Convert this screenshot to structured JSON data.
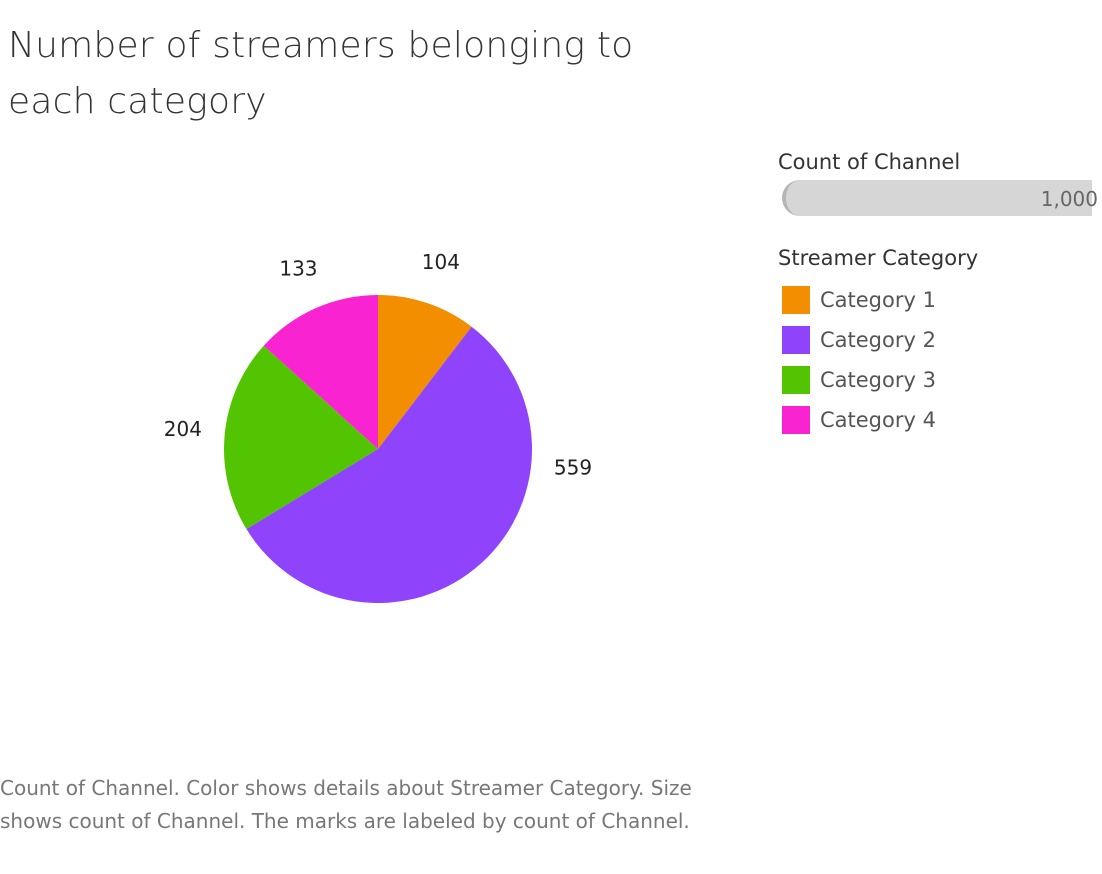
{
  "title": "Number of streamers belonging to each category",
  "legend": {
    "size_title": "Count of Channel",
    "size_value": "1,000",
    "color_title": "Streamer Category",
    "items": [
      {
        "label": "Category 1",
        "color": "#f28e00"
      },
      {
        "label": "Category 2",
        "color": "#8f44fc"
      },
      {
        "label": "Category 3",
        "color": "#52c401"
      },
      {
        "label": "Category 4",
        "color": "#fa23d2"
      }
    ]
  },
  "caption": "Count of Channel.  Color shows details about Streamer Category. Size shows count of Channel.  The marks are labeled by count of Channel.",
  "chart_data": {
    "type": "pie",
    "categories": [
      "Category 1",
      "Category 2",
      "Category 3",
      "Category 4"
    ],
    "values": [
      104,
      559,
      204,
      133
    ],
    "labels": [
      "104",
      "559",
      "204",
      "133"
    ],
    "colors": [
      "#f28e00",
      "#8f44fc",
      "#52c401",
      "#fa23d2"
    ],
    "start": "top",
    "direction": "clockwise"
  }
}
